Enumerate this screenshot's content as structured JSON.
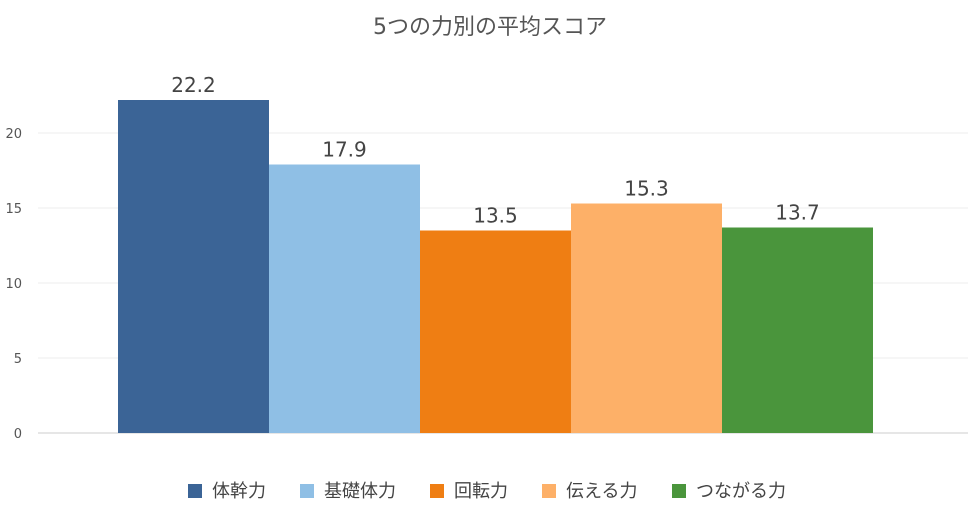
{
  "chart_data": {
    "type": "bar",
    "title": "5つの力別の平均スコア",
    "xlabel": "",
    "ylabel": "",
    "ylim": [
      0,
      25
    ],
    "yticks": [
      0,
      5,
      10,
      15,
      20
    ],
    "grid": true,
    "legend_position": "bottom",
    "series": [
      {
        "name": "体幹力",
        "value": 22.2,
        "color": "#3b6496"
      },
      {
        "name": "基礎体力",
        "value": 17.9,
        "color": "#8fbfe5"
      },
      {
        "name": "回転力",
        "value": 13.5,
        "color": "#ef7e13"
      },
      {
        "name": "伝える力",
        "value": 15.3,
        "color": "#fdb068"
      },
      {
        "name": "つながる力",
        "value": 13.7,
        "color": "#4a953c"
      }
    ]
  }
}
